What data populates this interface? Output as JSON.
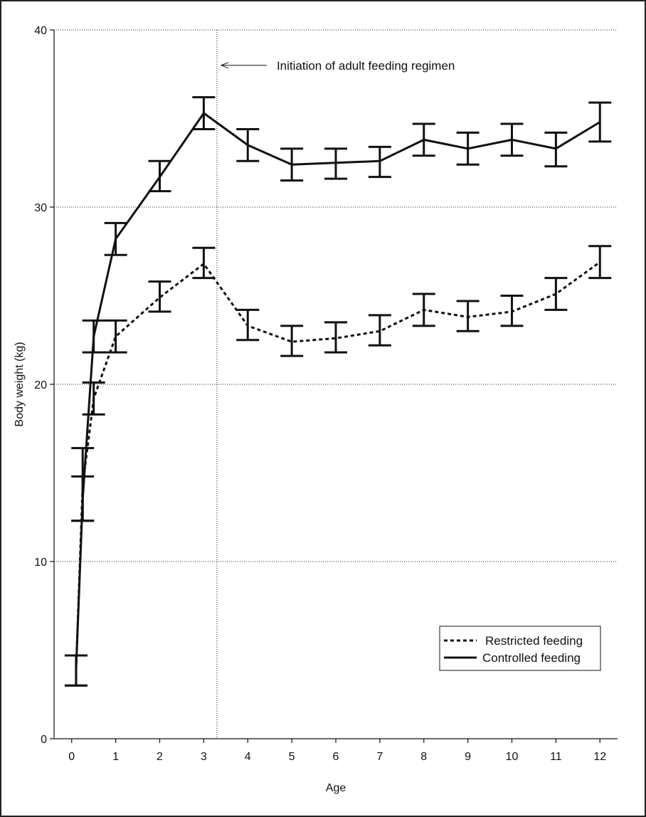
{
  "chart_data": {
    "type": "line",
    "title": "",
    "xlabel": "Age",
    "ylabel": "Body weight (kg)",
    "xlim": [
      -0.4,
      12.4
    ],
    "ylim": [
      0,
      40
    ],
    "x_ticks": [
      0,
      1,
      2,
      3,
      4,
      5,
      6,
      7,
      8,
      9,
      10,
      11,
      12
    ],
    "x_tick_labels": [
      "0",
      "1",
      "2",
      "3",
      "4",
      "5",
      "6",
      "7",
      "8",
      "9",
      "10",
      "11",
      "12"
    ],
    "y_ticks": [
      0,
      10,
      20,
      30,
      40
    ],
    "y_tick_labels": [
      "0",
      "10",
      "20",
      "30",
      "40"
    ],
    "grid": "horizontal dotted lines at 10, 20, 30, 40",
    "vertical_line_x": 3.3,
    "annotation": {
      "text": "Initiation of adult feeding regimen",
      "points_to_x": 3.3,
      "y": 38.0
    },
    "legend_position": "bottom-right",
    "series": [
      {
        "name": "Restricted feeding",
        "line_style": "dotted",
        "color": "#111111",
        "points": [
          {
            "x": 0.1,
            "y": 3.9,
            "err_low": 3.0,
            "err_high": 4.7
          },
          {
            "x": 0.25,
            "y": 14.3,
            "err_low": 12.3,
            "err_high": 16.4
          },
          {
            "x": 0.5,
            "y": 19.2,
            "err_low": 18.3,
            "err_high": 20.1
          },
          {
            "x": 1,
            "y": 22.7,
            "err_low": 21.8,
            "err_high": 23.6
          },
          {
            "x": 2,
            "y": 24.9,
            "err_low": 24.1,
            "err_high": 25.8
          },
          {
            "x": 3,
            "y": 26.8,
            "err_low": 26.0,
            "err_high": 27.7
          },
          {
            "x": 4,
            "y": 23.3,
            "err_low": 22.5,
            "err_high": 24.2
          },
          {
            "x": 5,
            "y": 22.4,
            "err_low": 21.6,
            "err_high": 23.3
          },
          {
            "x": 6,
            "y": 22.6,
            "err_low": 21.8,
            "err_high": 23.5
          },
          {
            "x": 7,
            "y": 23.0,
            "err_low": 22.2,
            "err_high": 23.9
          },
          {
            "x": 8,
            "y": 24.2,
            "err_low": 23.3,
            "err_high": 25.1
          },
          {
            "x": 9,
            "y": 23.8,
            "err_low": 23.0,
            "err_high": 24.7
          },
          {
            "x": 10,
            "y": 24.1,
            "err_low": 23.3,
            "err_high": 25.0
          },
          {
            "x": 11,
            "y": 25.1,
            "err_low": 24.2,
            "err_high": 26.0
          },
          {
            "x": 12,
            "y": 26.9,
            "err_low": 26.0,
            "err_high": 27.8
          }
        ]
      },
      {
        "name": "Controlled feeding",
        "line_style": "solid",
        "color": "#111111",
        "points": [
          {
            "x": 0.1,
            "y": 3.9,
            "err_low": 3.0,
            "err_high": 4.7
          },
          {
            "x": 0.25,
            "y": 13.5,
            "err_low": 12.3,
            "err_high": 14.8
          },
          {
            "x": 0.5,
            "y": 22.7,
            "err_low": 21.8,
            "err_high": 23.6
          },
          {
            "x": 1,
            "y": 28.2,
            "err_low": 27.3,
            "err_high": 29.1
          },
          {
            "x": 2,
            "y": 31.7,
            "err_low": 30.9,
            "err_high": 32.6
          },
          {
            "x": 3,
            "y": 35.3,
            "err_low": 34.4,
            "err_high": 36.2
          },
          {
            "x": 4,
            "y": 33.5,
            "err_low": 32.6,
            "err_high": 34.4
          },
          {
            "x": 5,
            "y": 32.4,
            "err_low": 31.5,
            "err_high": 33.3
          },
          {
            "x": 6,
            "y": 32.5,
            "err_low": 31.6,
            "err_high": 33.3
          },
          {
            "x": 7,
            "y": 32.6,
            "err_low": 31.7,
            "err_high": 33.4
          },
          {
            "x": 8,
            "y": 33.8,
            "err_low": 32.9,
            "err_high": 34.7
          },
          {
            "x": 9,
            "y": 33.3,
            "err_low": 32.4,
            "err_high": 34.2
          },
          {
            "x": 10,
            "y": 33.8,
            "err_low": 32.9,
            "err_high": 34.7
          },
          {
            "x": 11,
            "y": 33.3,
            "err_low": 32.3,
            "err_high": 34.2
          },
          {
            "x": 12,
            "y": 34.8,
            "err_low": 33.7,
            "err_high": 35.9
          }
        ]
      }
    ]
  }
}
